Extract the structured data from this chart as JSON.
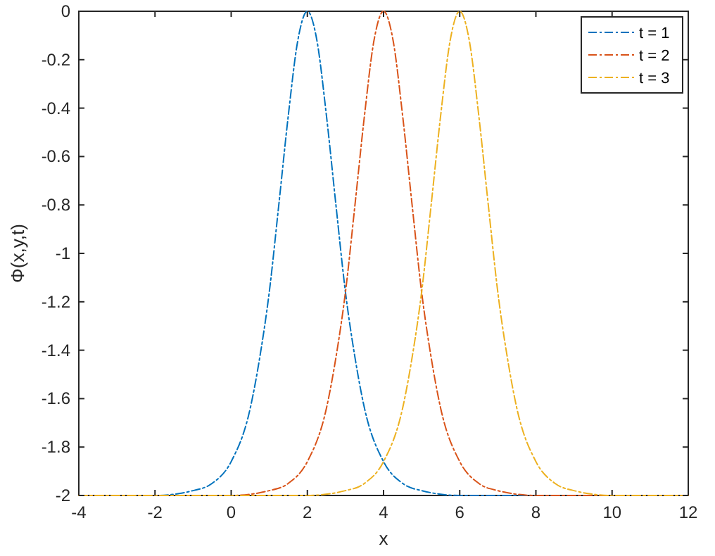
{
  "chart_data": {
    "type": "line",
    "xlabel": "x",
    "ylabel": "Φ(x,y,t)",
    "xlim": [
      -4,
      12
    ],
    "ylim": [
      -2,
      0
    ],
    "xticks": [
      -4,
      -2,
      0,
      2,
      4,
      6,
      8,
      10,
      12
    ],
    "yticks": [
      -2,
      -1.8,
      -1.6,
      -1.4,
      -1.2,
      -1,
      -0.8,
      -0.6,
      -0.4,
      -0.2,
      0
    ],
    "grid": false,
    "legend": "top right",
    "marker": "none",
    "line_style": "dashed",
    "series": [
      {
        "name": "t = 1",
        "color": "#0072bd",
        "x": [
          -4,
          -2,
          -1,
          -0.5,
          0,
          0.5,
          0.75,
          1,
          1.25,
          1.5,
          1.75,
          2,
          2.25,
          2.5,
          2.75,
          3,
          3.25,
          3.5,
          4,
          4.5,
          5,
          6,
          8,
          12
        ],
        "values": [
          -2,
          -2,
          -1.98,
          -1.95,
          -1.86,
          -1.64,
          -1.43,
          -1.16,
          -0.8,
          -0.43,
          -0.12,
          0,
          -0.12,
          -0.43,
          -0.8,
          -1.16,
          -1.43,
          -1.64,
          -1.86,
          -1.95,
          -1.98,
          -2,
          -2,
          -2
        ]
      },
      {
        "name": "t = 2",
        "color": "#d95319",
        "x": [
          -4,
          0,
          1,
          1.5,
          2,
          2.5,
          2.75,
          3,
          3.25,
          3.5,
          3.75,
          4,
          4.25,
          4.5,
          4.75,
          5,
          5.25,
          5.5,
          6,
          6.5,
          7,
          8,
          10,
          12
        ],
        "values": [
          -2,
          -2,
          -1.98,
          -1.95,
          -1.86,
          -1.64,
          -1.43,
          -1.16,
          -0.8,
          -0.43,
          -0.12,
          0,
          -0.12,
          -0.43,
          -0.8,
          -1.16,
          -1.43,
          -1.64,
          -1.86,
          -1.95,
          -1.98,
          -2,
          -2,
          -2
        ]
      },
      {
        "name": "t = 3",
        "color": "#edb120",
        "x": [
          -4,
          2,
          3,
          3.5,
          4,
          4.5,
          4.75,
          5,
          5.25,
          5.5,
          5.75,
          6,
          6.25,
          6.5,
          6.75,
          7,
          7.25,
          7.5,
          8,
          8.5,
          9,
          10,
          12
        ],
        "values": [
          -2,
          -2,
          -1.98,
          -1.95,
          -1.86,
          -1.64,
          -1.43,
          -1.16,
          -0.8,
          -0.43,
          -0.12,
          0,
          -0.12,
          -0.43,
          -0.8,
          -1.16,
          -1.43,
          -1.64,
          -1.86,
          -1.95,
          -1.98,
          -2,
          -2
        ]
      }
    ]
  }
}
